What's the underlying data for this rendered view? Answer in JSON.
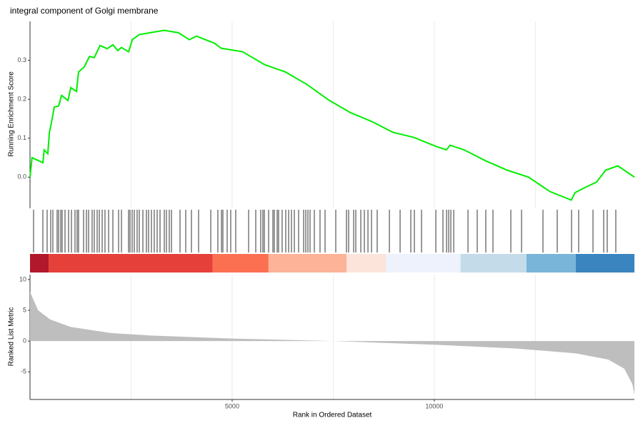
{
  "chart_data": [
    {
      "type": "line",
      "title": "integral component of Golgi membrane",
      "ylabel": "Running Enrichment Score",
      "color": "#00ee00",
      "xlim": [
        0,
        14950
      ],
      "xminor": [
        2500,
        5000,
        7500,
        10000,
        12500
      ],
      "ylim": [
        -0.08,
        0.4
      ],
      "yticks": [
        {
          "value": 0,
          "label": "0.0"
        },
        0.1,
        0.2,
        0.3
      ],
      "x": [
        0,
        50,
        320,
        350,
        440,
        480,
        530,
        600,
        710,
        780,
        940,
        1010,
        1150,
        1200,
        1340,
        1470,
        1590,
        1730,
        1910,
        2050,
        2170,
        2260,
        2440,
        2530,
        2700,
        2970,
        3320,
        3670,
        3940,
        4120,
        4560,
        4730,
        5260,
        5800,
        6320,
        6850,
        7390,
        7920,
        8450,
        8980,
        9500,
        10040,
        10300,
        10390,
        10740,
        11270,
        11800,
        12330,
        12860,
        13390,
        13480,
        13740,
        14010,
        14240,
        14540,
        14950
      ],
      "values": [
        0,
        0.05,
        0.037,
        0.07,
        0.06,
        0.115,
        0.14,
        0.18,
        0.183,
        0.21,
        0.197,
        0.23,
        0.22,
        0.27,
        0.283,
        0.31,
        0.307,
        0.338,
        0.33,
        0.34,
        0.325,
        0.333,
        0.322,
        0.353,
        0.366,
        0.371,
        0.377,
        0.371,
        0.353,
        0.362,
        0.344,
        0.331,
        0.322,
        0.289,
        0.27,
        0.238,
        0.198,
        0.166,
        0.143,
        0.115,
        0.102,
        0.079,
        0.07,
        0.082,
        0.07,
        0.042,
        0.018,
        0,
        -0.037,
        -0.059,
        -0.04,
        -0.026,
        -0.013,
        0.018,
        0.029,
        0
      ]
    },
    {
      "type": "rug",
      "color": "#000000",
      "xlim": [
        0,
        14950
      ],
      "x": [
        88,
        318,
        424,
        512,
        565,
        671,
        707,
        760,
        795,
        866,
        954,
        1025,
        1113,
        1166,
        1201,
        1325,
        1396,
        1449,
        1537,
        1590,
        1661,
        1714,
        1785,
        1855,
        1944,
        2050,
        2191,
        2262,
        2438,
        2474,
        2527,
        2580,
        2650,
        2703,
        2792,
        2880,
        2933,
        3004,
        3074,
        3145,
        3216,
        3322,
        3375,
        3445,
        3499,
        3711,
        3852,
        3993,
        4170,
        4471,
        4647,
        4736,
        4771,
        4877,
        4965,
        5089,
        5407,
        5584,
        5707,
        5760,
        5796,
        5902,
        6008,
        6043,
        6114,
        6149,
        6237,
        6326,
        6397,
        6467,
        6538,
        6644,
        6768,
        6821,
        6874,
        6927,
        7033,
        7174,
        7298,
        7563,
        7828,
        7881,
        8005,
        8058,
        8182,
        8270,
        8359,
        8447,
        8588,
        8889,
        9154,
        9419,
        9507,
        9684,
        10038,
        10214,
        10303,
        10356,
        10409,
        10480,
        10833,
        11062,
        11274,
        11451,
        11893,
        12158,
        12688,
        13041,
        13395,
        13571,
        13925,
        14190,
        14278,
        14490
      ],
      "bands": {
        "edges": [
          0,
          460,
          4520,
          5900,
          7830,
          8800,
          10650,
          12280,
          13500,
          14950
        ],
        "colors": [
          "#b2182b",
          "#e6403a",
          "#fb7050",
          "#fcb398",
          "#fde4da",
          "#edf2fc",
          "#c4dbea",
          "#79b4d9",
          "#3a85c0"
        ]
      }
    },
    {
      "type": "area",
      "xlabel": "Rank in Ordered Dataset",
      "ylabel": "Ranked List Metric",
      "color": "#bebebe",
      "xlim": [
        0,
        14950
      ],
      "xticks": [
        5000,
        10000
      ],
      "xminor": [
        2500,
        5000,
        7500,
        10000,
        12500
      ],
      "ylim": [
        -9.5,
        10.8
      ],
      "yticks": [
        -5,
        0,
        5,
        10
      ],
      "x": [
        0,
        200,
        500,
        1000,
        2000,
        3000,
        5000,
        7500,
        10000,
        12000,
        13500,
        14300,
        14700,
        14900,
        14950
      ],
      "values": [
        8,
        5,
        3.5,
        2.3,
        1.3,
        0.9,
        0.4,
        0,
        -0.6,
        -1.2,
        -2,
        -3,
        -4.5,
        -7,
        -8.8
      ]
    }
  ]
}
